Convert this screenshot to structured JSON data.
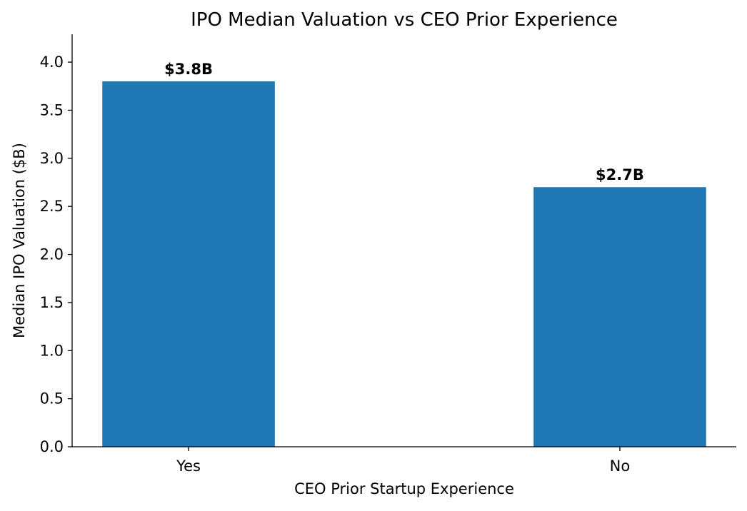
{
  "chart_data": {
    "type": "bar",
    "title": "IPO Median Valuation vs CEO Prior Experience",
    "xlabel": "CEO Prior Startup Experience",
    "ylabel": "Median IPO Valuation ($B)",
    "categories": [
      "Yes",
      "No"
    ],
    "values": [
      3.8,
      2.7
    ],
    "data_labels": [
      "$3.8B",
      "$2.7B"
    ],
    "ylim": [
      0,
      4.29
    ],
    "xlim": [
      -0.27,
      1.27
    ],
    "yticks": [
      0.0,
      0.5,
      1.0,
      1.5,
      2.0,
      2.5,
      3.0,
      3.5,
      4.0
    ],
    "ytick_labels": [
      "0.0",
      "0.5",
      "1.0",
      "1.5",
      "2.0",
      "2.5",
      "3.0",
      "3.5",
      "4.0"
    ],
    "bar_color": "#1f77b4",
    "grid": false,
    "legend": "none"
  }
}
